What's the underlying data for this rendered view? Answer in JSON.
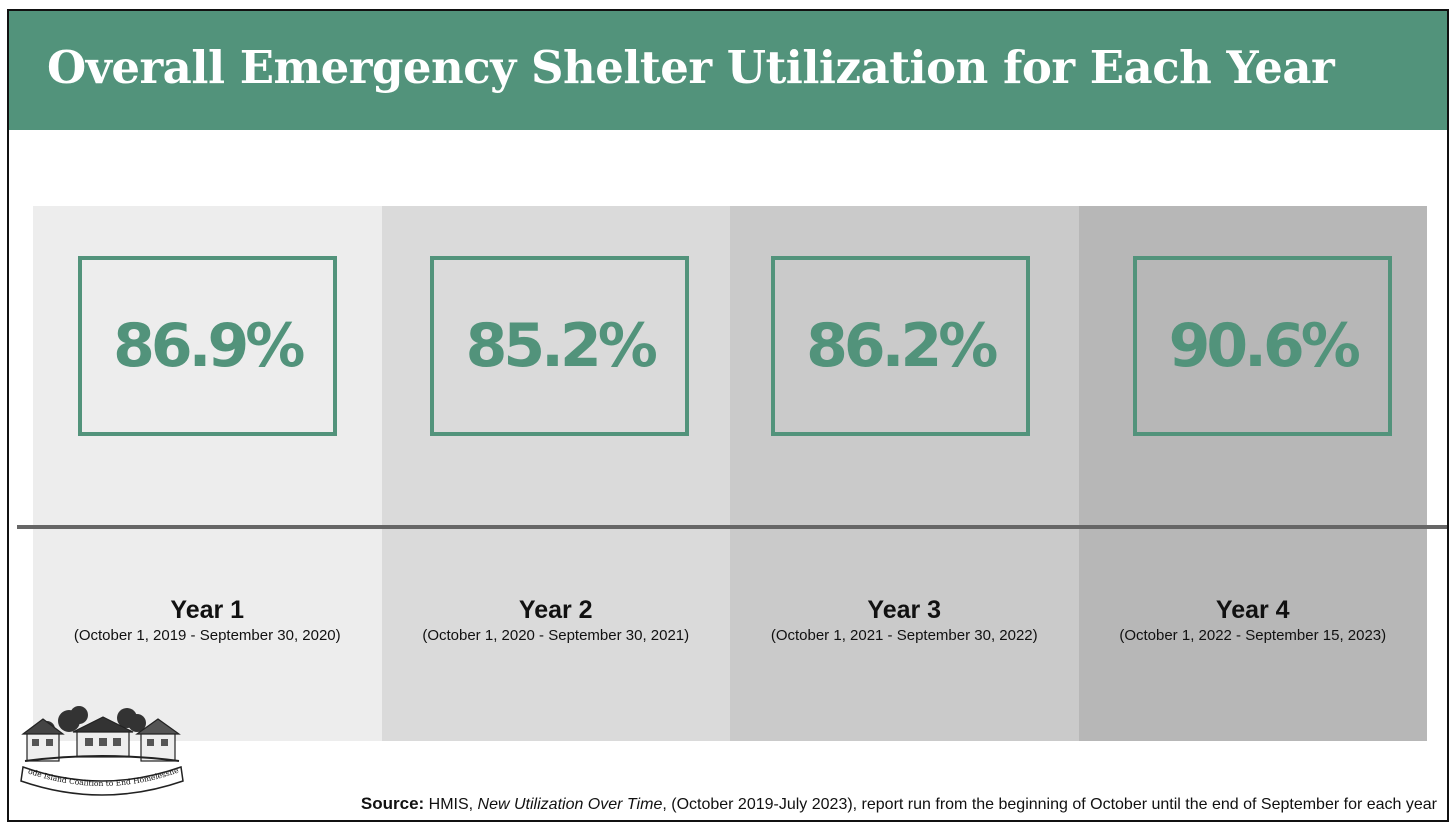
{
  "title": "Overall Emergency Shelter Utilization for Each Year",
  "chart_data": {
    "type": "table",
    "categories": [
      "Year 1",
      "Year 2",
      "Year 3",
      "Year 4"
    ],
    "ranges": [
      "(October 1, 2019 - September 30, 2020)",
      "(October 1, 2020 - September 30, 2021)",
      "(October 1, 2021 - September 30, 2022)",
      "(October 1, 2022 - September 15, 2023)"
    ],
    "values": [
      86.9,
      85.2,
      86.2,
      90.6
    ],
    "value_labels": [
      "86.9%",
      "85.2%",
      "86.2%",
      "90.6%"
    ],
    "column_colors": [
      "#ededed",
      "#dadada",
      "#cacaca",
      "#b7b7b7"
    ],
    "accent_color": "#52937b"
  },
  "source": {
    "label": "Source:",
    "name": "HMIS,",
    "report_title": "New Utilization Over Time",
    "text": ", (October 2019-July 2023), report run from the beginning of October until the end of September for each year"
  },
  "logo": {
    "text": "Rhode Island Coalition to End Homelessness"
  }
}
